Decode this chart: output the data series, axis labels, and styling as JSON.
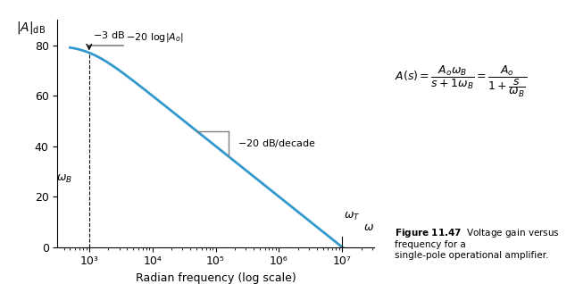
{
  "title": "",
  "xlabel": "Radian frequency (log scale)",
  "ylabel": "|A|_dB",
  "ylim": [
    0,
    90
  ],
  "xlim_log": [
    2.5,
    7.5
  ],
  "xmin": 100.0,
  "xmax": 30000000.0,
  "omega_B": 1000.0,
  "omega_T": 10000000.0,
  "A0_dB": 80,
  "xticks": [
    1000.0,
    10000.0,
    100000.0,
    1000000.0,
    10000000.0
  ],
  "xtick_labels": [
    "10³",
    "10⁴",
    "10⁵",
    "10⁶",
    "10⁷"
  ],
  "yticks": [
    0,
    20,
    40,
    60,
    80
  ],
  "line_color": "#3399cc",
  "annotation_color": "#555555",
  "figure_caption": "Figure 11.47  Voltage gain versus frequency for a\nsingle-pole operational amplifier.",
  "figure_caption_color": "#cc6600",
  "figure_caption_bold": "Figure 11.47",
  "bg_color": "#ffffff"
}
